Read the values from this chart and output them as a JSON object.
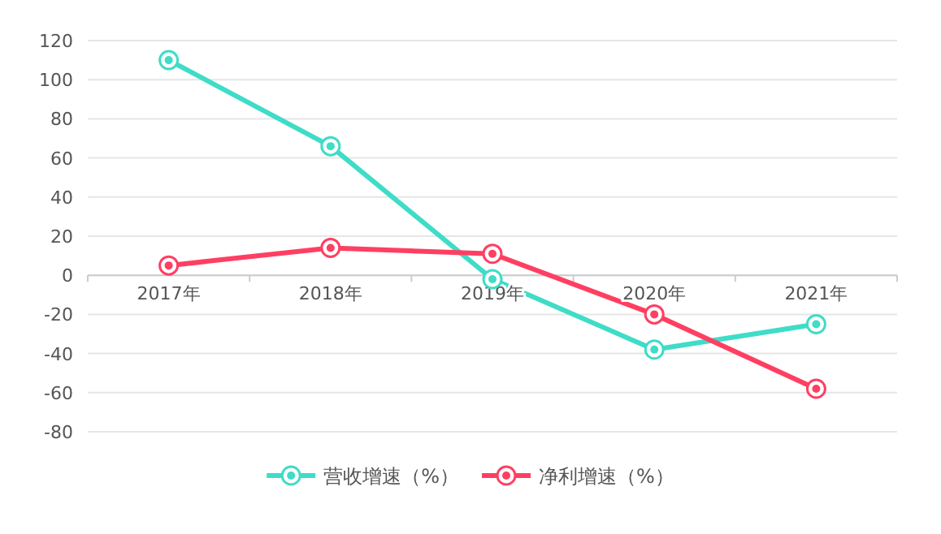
{
  "chart_data": {
    "type": "line",
    "categories": [
      "2017年",
      "2018年",
      "2019年",
      "2020年",
      "2021年"
    ],
    "series": [
      {
        "name": "营收增速（%）",
        "color": "#3fdcc8",
        "values": [
          110,
          66,
          -2,
          -38,
          -25
        ]
      },
      {
        "name": "净利增速（%）",
        "color": "#ff3f62",
        "values": [
          5,
          14,
          11,
          -20,
          -58
        ]
      }
    ],
    "ylim": [
      -80,
      120
    ],
    "yticks": [
      -80,
      -60,
      -40,
      -20,
      0,
      20,
      40,
      60,
      80,
      100,
      120
    ],
    "grid": "y",
    "legend": "bottom",
    "marker": "circle",
    "line_style": "solid"
  }
}
